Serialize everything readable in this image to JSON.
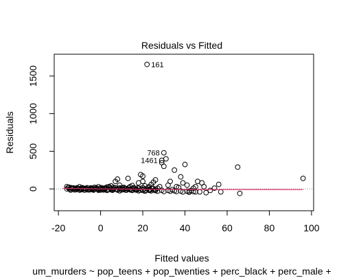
{
  "chart_data": {
    "type": "scatter",
    "title": "Residuals vs Fitted",
    "xlabel": "Fitted values",
    "ylabel": "Residuals",
    "subtitle": "um_murders ~ pop_teens + pop_twenties + perc_black + perc_male +",
    "xlim": [
      -22,
      101
    ],
    "ylim": [
      -290,
      1790
    ],
    "x_ticks": [
      -20,
      0,
      20,
      40,
      60,
      80,
      100
    ],
    "x_tick_labels": [
      "-20",
      "0",
      "20",
      "40",
      "60",
      "80",
      "100"
    ],
    "y_ticks": [
      0,
      500,
      1000,
      1500
    ],
    "y_tick_labels": [
      "0",
      "500",
      "1000",
      "1500"
    ],
    "zero_line_color": "#808080",
    "smooth_color": "#e0306a",
    "grid": false,
    "points": [
      [
        -16,
        30
      ],
      [
        -15,
        22
      ],
      [
        -14,
        15
      ],
      [
        -13,
        10
      ],
      [
        -12,
        8
      ],
      [
        -11,
        5
      ],
      [
        -10,
        28
      ],
      [
        -9,
        5
      ],
      [
        -8,
        10
      ],
      [
        -7,
        3
      ],
      [
        -6,
        10
      ],
      [
        -5,
        0
      ],
      [
        -4,
        2
      ],
      [
        -3,
        20
      ],
      [
        -2,
        5
      ],
      [
        -1,
        28
      ],
      [
        0,
        5
      ],
      [
        1,
        10
      ],
      [
        2,
        0
      ],
      [
        3,
        25
      ],
      [
        4,
        30
      ],
      [
        5,
        40
      ],
      [
        6,
        20
      ],
      [
        7,
        100
      ],
      [
        8,
        130
      ],
      [
        9,
        50
      ],
      [
        10,
        10
      ],
      [
        11,
        20
      ],
      [
        12,
        5
      ],
      [
        13,
        140
      ],
      [
        14,
        30
      ],
      [
        15,
        45
      ],
      [
        16,
        10
      ],
      [
        17,
        -5
      ],
      [
        18,
        80
      ],
      [
        19,
        190
      ],
      [
        20,
        170
      ],
      [
        20,
        100
      ],
      [
        21,
        40
      ],
      [
        22,
        1655
      ],
      [
        23,
        30
      ],
      [
        23,
        -10
      ],
      [
        24,
        60
      ],
      [
        25,
        90
      ],
      [
        26,
        120
      ],
      [
        27,
        10
      ],
      [
        28,
        30
      ],
      [
        29,
        380
      ],
      [
        29,
        350
      ],
      [
        30,
        300
      ],
      [
        30,
        480
      ],
      [
        31,
        400
      ],
      [
        32,
        50
      ],
      [
        33,
        100
      ],
      [
        34,
        -10
      ],
      [
        35,
        250
      ],
      [
        36,
        30
      ],
      [
        37,
        20
      ],
      [
        38,
        160
      ],
      [
        39,
        80
      ],
      [
        40,
        325
      ],
      [
        41,
        50
      ],
      [
        42,
        -30
      ],
      [
        43,
        -20
      ],
      [
        44,
        10
      ],
      [
        45,
        30
      ],
      [
        46,
        100
      ],
      [
        47,
        -40
      ],
      [
        48,
        80
      ],
      [
        49,
        30
      ],
      [
        50,
        -50
      ],
      [
        52,
        -20
      ],
      [
        54,
        10
      ],
      [
        56,
        60
      ],
      [
        57,
        -40
      ],
      [
        65,
        290
      ],
      [
        66,
        -60
      ],
      [
        96,
        140
      ],
      [
        -12,
        -5
      ],
      [
        -9,
        -10
      ],
      [
        -6,
        -12
      ],
      [
        -3,
        -8
      ],
      [
        0,
        -15
      ],
      [
        3,
        -20
      ],
      [
        6,
        -10
      ],
      [
        9,
        -25
      ],
      [
        12,
        -15
      ],
      [
        15,
        -20
      ],
      [
        18,
        -25
      ],
      [
        21,
        -30
      ],
      [
        24,
        -25
      ],
      [
        27,
        -30
      ],
      [
        30,
        -35
      ],
      [
        33,
        -30
      ],
      [
        36,
        -35
      ],
      [
        39,
        -40
      ],
      [
        42,
        -45
      ],
      [
        45,
        -40
      ],
      [
        -14,
        0
      ],
      [
        -10,
        -3
      ],
      [
        -7,
        -2
      ],
      [
        -4,
        -6
      ],
      [
        -1,
        -8
      ],
      [
        2,
        -5
      ],
      [
        5,
        -12
      ],
      [
        8,
        -8
      ],
      [
        11,
        -10
      ],
      [
        14,
        -12
      ],
      [
        17,
        -15
      ],
      [
        20,
        -18
      ],
      [
        23,
        -20
      ],
      [
        26,
        -22
      ],
      [
        29,
        -18
      ],
      [
        32,
        -20
      ],
      [
        35,
        -25
      ],
      [
        38,
        -28
      ],
      [
        41,
        -30
      ],
      [
        44,
        -35
      ]
    ],
    "labels": [
      {
        "x": 22,
        "y": 1655,
        "text": "161",
        "side": "right"
      },
      {
        "x": 30,
        "y": 480,
        "text": "768",
        "side": "left"
      },
      {
        "x": 29,
        "y": 380,
        "text": "1461",
        "side": "left"
      }
    ],
    "smooth": [
      [
        -18,
        8
      ],
      [
        -10,
        4
      ],
      [
        0,
        0
      ],
      [
        10,
        -2
      ],
      [
        20,
        -4
      ],
      [
        30,
        -6
      ],
      [
        40,
        -7
      ],
      [
        50,
        -8
      ],
      [
        60,
        -8
      ],
      [
        80,
        -8
      ],
      [
        96,
        -9
      ]
    ]
  }
}
